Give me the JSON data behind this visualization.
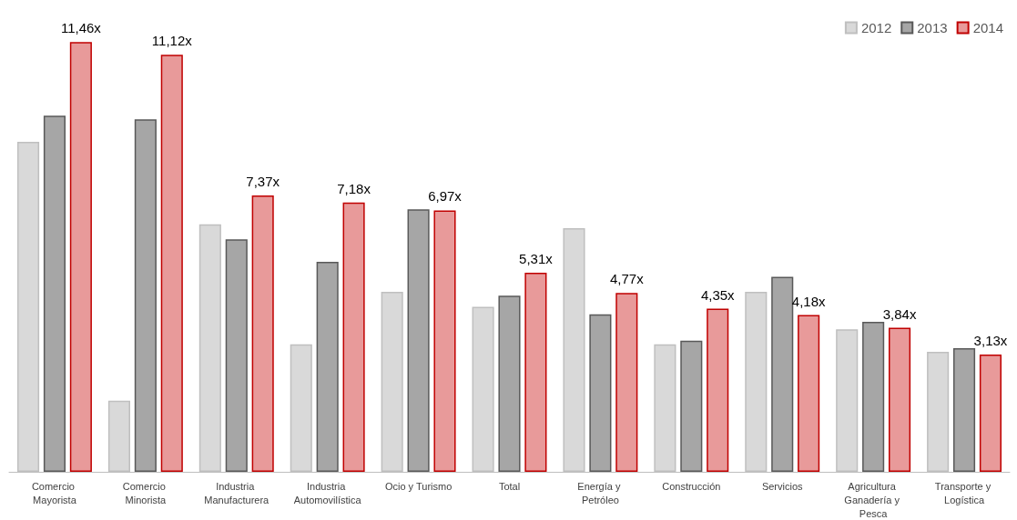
{
  "chart_data": {
    "type": "bar",
    "categories": [
      "Comercio Mayorista",
      "Comercio Minorista",
      "Industria Manufacturera",
      "Industria Automovilística",
      "Ocio y Turismo",
      "Total",
      "Energía y Petróleo",
      "Construcción",
      "Servicios",
      "Agricultura Ganadería y Pesca",
      "Transporte y Logística"
    ],
    "series": [
      {
        "name": "2012",
        "color": "#d9d9d9",
        "values": [
          8.8,
          1.9,
          6.6,
          3.4,
          4.8,
          4.4,
          6.5,
          3.4,
          4.8,
          3.8,
          3.2
        ]
      },
      {
        "name": "2013",
        "color": "#a6a6a6",
        "values": [
          9.5,
          9.4,
          6.2,
          5.6,
          7.0,
          4.7,
          4.2,
          3.5,
          5.2,
          4.0,
          3.3
        ]
      },
      {
        "name": "2014",
        "color": "#e89a9a",
        "values": [
          11.46,
          11.12,
          7.37,
          7.18,
          6.97,
          5.31,
          4.77,
          4.35,
          4.18,
          3.84,
          3.13
        ],
        "value_labels": [
          "11,46x",
          "11,12x",
          "7,37x",
          "7,18x",
          "6,97x",
          "5,31x",
          "4,77x",
          "4,35x",
          "4,18x",
          "3,84x",
          "3,13x"
        ]
      }
    ],
    "ylim": [
      0,
      12
    ],
    "legend": "top right"
  }
}
